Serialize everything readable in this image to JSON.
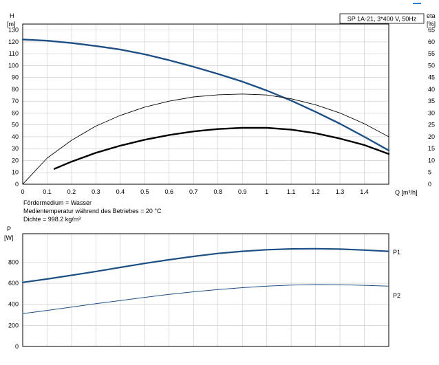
{
  "page": {
    "corner_link_color": "#2f7fd0"
  },
  "chart_data": [
    {
      "type": "line",
      "title": "SP 1A-21, 3*400 V, 50Hz",
      "xlabel": "Q [m³/h]",
      "ylabel_left": [
        "H",
        "[m]"
      ],
      "ylabel_right": [
        "eta",
        "[%]"
      ],
      "xlim": [
        0,
        1.5
      ],
      "ylim": [
        0,
        135
      ],
      "ylim_right": [
        0,
        67.5
      ],
      "xticks": [
        "0",
        "0.1",
        "0.2",
        "0.3",
        "0.4",
        "0.5",
        "0.6",
        "0.7",
        "0.8",
        "0.9",
        "1",
        "1.1",
        "1.2",
        "1.3",
        "1.4"
      ],
      "yticks_left": [
        "0",
        "10",
        "20",
        "30",
        "40",
        "50",
        "60",
        "70",
        "80",
        "90",
        "100",
        "110",
        "120",
        "130"
      ],
      "yticks_right": [
        "0",
        "5",
        "10",
        "15",
        "20",
        "25",
        "30",
        "35",
        "40",
        "45",
        "50",
        "55",
        "60",
        "65"
      ],
      "grid": true,
      "series": [
        {
          "axis": "left",
          "color": "#1d4f85",
          "width": 2.4,
          "x": [
            0,
            0.1,
            0.2,
            0.3,
            0.4,
            0.5,
            0.6,
            0.7,
            0.8,
            0.9,
            1.0,
            1.1,
            1.2,
            1.3,
            1.4,
            1.5
          ],
          "y": [
            122,
            121,
            119,
            116.5,
            113.5,
            109.5,
            104.5,
            99,
            93,
            86.5,
            79,
            70.5,
            61,
            51,
            40,
            28.5
          ]
        },
        {
          "axis": "right",
          "color": "#000000",
          "width": 0.9,
          "x": [
            0,
            0.1,
            0.2,
            0.3,
            0.4,
            0.5,
            0.6,
            0.7,
            0.8,
            0.9,
            1.0,
            1.1,
            1.2,
            1.3,
            1.4,
            1.5
          ],
          "y": [
            0,
            11,
            18.5,
            24.5,
            29,
            32.5,
            35,
            36.8,
            37.7,
            38,
            37.6,
            36,
            33.5,
            30,
            25.5,
            20
          ]
        },
        {
          "axis": "left",
          "color": "#000000",
          "width": 2.4,
          "x": [
            0.13,
            0.2,
            0.3,
            0.4,
            0.5,
            0.6,
            0.7,
            0.8,
            0.9,
            1.0,
            1.1,
            1.2,
            1.3,
            1.4,
            1.5
          ],
          "y": [
            13,
            19,
            26.5,
            32.5,
            37.5,
            41.5,
            44.5,
            46.5,
            47.5,
            47.5,
            46,
            43,
            38.5,
            33,
            25.5
          ]
        }
      ],
      "notes": [
        "Fördermedium = Wasser",
        "Medientemperatur während des Betriebes = 20 °C",
        "Dichte = 998.2 kg/m³"
      ]
    },
    {
      "type": "line",
      "ylabel": [
        "P",
        "[W]"
      ],
      "xlim": [
        0,
        1.5
      ],
      "ylim": [
        0,
        1070
      ],
      "yticks": [
        "0",
        "200",
        "400",
        "600",
        "800"
      ],
      "grid": true,
      "series": [
        {
          "name": "P1",
          "color": "#1d4f85",
          "width": 2.2,
          "x": [
            0,
            0.1,
            0.2,
            0.3,
            0.4,
            0.5,
            0.6,
            0.7,
            0.8,
            0.9,
            1.0,
            1.1,
            1.2,
            1.3,
            1.4,
            1.5
          ],
          "y": [
            608,
            640,
            675,
            712,
            750,
            788,
            823,
            855,
            883,
            903,
            918,
            926,
            928,
            924,
            915,
            903
          ]
        },
        {
          "name": "P2",
          "color": "#1d4f85",
          "width": 1.0,
          "x": [
            0,
            0.1,
            0.2,
            0.3,
            0.4,
            0.5,
            0.6,
            0.7,
            0.8,
            0.9,
            1.0,
            1.1,
            1.2,
            1.3,
            1.4,
            1.5
          ],
          "y": [
            312,
            342,
            374,
            406,
            436,
            466,
            494,
            519,
            540,
            558,
            572,
            582,
            587,
            586,
            580,
            572
          ]
        }
      ]
    }
  ]
}
